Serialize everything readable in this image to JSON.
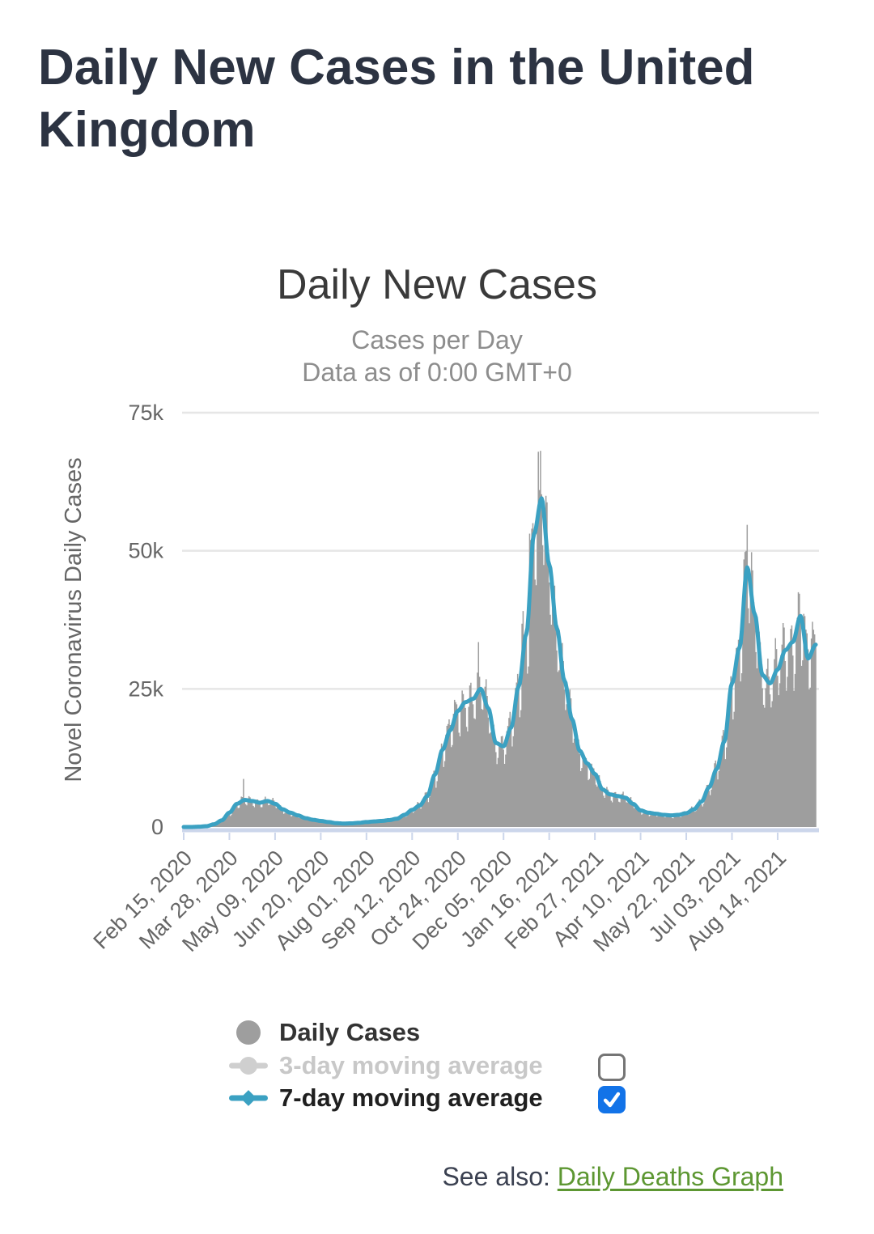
{
  "page": {
    "title": "Daily New Cases in the United Kingdom"
  },
  "chart_data": {
    "type": "bar+line",
    "title": "Daily New Cases",
    "subtitle1": "Cases per Day",
    "subtitle2": "Data as of 0:00 GMT+0",
    "ylabel": "Novel Coronavirus Daily Cases",
    "ylim": [
      0,
      75000
    ],
    "grid_on": true,
    "legend_position": "bottom-left",
    "y_ticks": [
      {
        "v": 0,
        "label": "0"
      },
      {
        "v": 25000,
        "label": "25k"
      },
      {
        "v": 50000,
        "label": "50k"
      },
      {
        "v": 75000,
        "label": "75k"
      }
    ],
    "x_axis": {
      "tick_interval_days": 42,
      "tick_days": [
        0,
        42,
        84,
        126,
        168,
        210,
        252,
        294,
        336,
        378,
        420,
        462,
        504,
        546
      ],
      "labels": [
        "Feb 15, 2020",
        "Mar 28, 2020",
        "May 09, 2020",
        "Jun 20, 2020",
        "Aug 01, 2020",
        "Sep 12, 2020",
        "Oct 24, 2020",
        "Dec 05, 2020",
        "Jan 16, 2021",
        "Feb 27, 2021",
        "Apr 10, 2021",
        "May 22, 2021",
        "Jul 03, 2021",
        "Aug 14, 2021"
      ]
    },
    "start_date": "Feb 15, 2020",
    "end_date_day_index": 581,
    "series": [
      {
        "name": "Daily Cases",
        "type": "column",
        "color": "#9e9e9e",
        "visible": true,
        "checkbox": null,
        "label_color": "#333333",
        "marker": "circle"
      },
      {
        "name": "3-day moving average",
        "type": "line",
        "color": "#cfcfcf",
        "visible": false,
        "checkbox": "unchecked",
        "label_color": "#c8c8c8",
        "marker": "line-circle"
      },
      {
        "name": "7-day moving average",
        "type": "line",
        "color": "#3ba1c2",
        "visible": true,
        "checkbox": "checked",
        "label_color": "#1f1f1f",
        "marker": "line-diamond"
      }
    ],
    "avg7_weekly_cases_day0_step7": [
      0,
      0,
      50,
      150,
      500,
      1200,
      2600,
      4200,
      4900,
      4700,
      4400,
      4700,
      4200,
      3200,
      2600,
      2100,
      1600,
      1300,
      1100,
      900,
      700,
      620,
      660,
      750,
      900,
      1000,
      1100,
      1250,
      1500,
      2200,
      3100,
      3900,
      5600,
      9500,
      14000,
      17500,
      21000,
      22600,
      23200,
      25000,
      21500,
      15200,
      14600,
      18000,
      25500,
      35000,
      53000,
      59500,
      47500,
      36000,
      26500,
      19500,
      13800,
      11500,
      9600,
      6800,
      5900,
      5600,
      5300,
      4200,
      3000,
      2600,
      2400,
      2200,
      2100,
      2200,
      2500,
      3200,
      4600,
      7200,
      10500,
      15500,
      26000,
      32500,
      47000,
      38500,
      27500,
      26000,
      28500,
      32000,
      33500,
      38200,
      30500,
      33000
    ],
    "daily_bar_synthesis": {
      "weekday_factors": [
        0.97,
        0.8,
        0.82,
        1.02,
        1.1,
        1.13,
        1.08
      ],
      "outlier_bars": [
        {
          "day": 55,
          "cases": 8700
        },
        {
          "day": 271,
          "cases": 33470
        },
        {
          "day": 311,
          "cases": 36800
        },
        {
          "day": 312,
          "cases": 39100
        },
        {
          "day": 318,
          "cases": 53100
        },
        {
          "day": 321,
          "cases": 55000
        },
        {
          "day": 327,
          "cases": 61000
        },
        {
          "day": 328,
          "cases": 68100
        },
        {
          "day": 518,
          "cases": 54700
        },
        {
          "day": 565,
          "cases": 42500
        }
      ]
    },
    "colors": {
      "grid": "#e6e6e6",
      "axis_line": "#ccd6eb",
      "tick_text": "#666666",
      "axis_title_text": "#666666",
      "checkbox_checked": "#1273e8",
      "checkbox_border": "#757575"
    }
  },
  "footer": {
    "see_also_label": "See also: ",
    "link_text": "Daily Deaths Graph",
    "link_color": "#5d9732"
  }
}
